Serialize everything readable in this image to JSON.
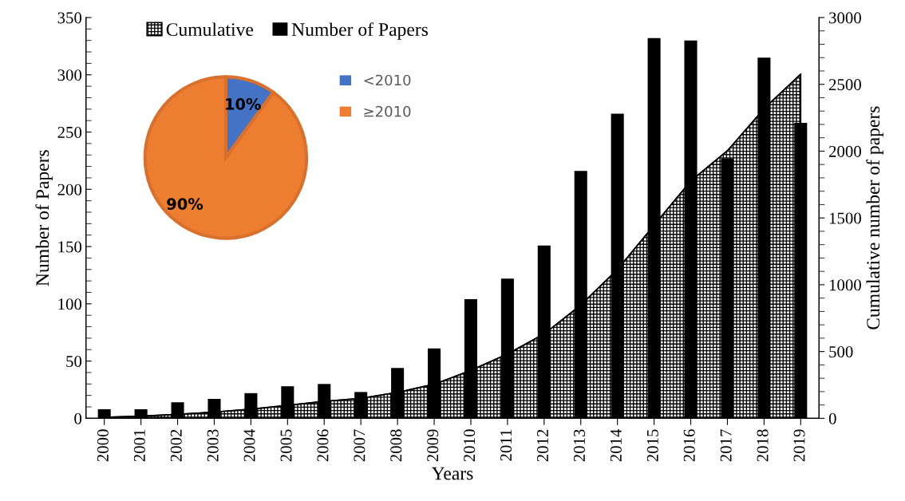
{
  "chart_data": [
    {
      "type": "bar",
      "xlabel": "Years",
      "ylabel": "Number of Papers",
      "y2label": "Cumulative number of papers",
      "categories": [
        "2000",
        "2001",
        "2002",
        "2003",
        "2004",
        "2005",
        "2006",
        "2007",
        "2008",
        "2009",
        "2010",
        "2011",
        "2012",
        "2013",
        "2014",
        "2015",
        "2016",
        "2017",
        "2018",
        "2019"
      ],
      "series": [
        {
          "name": "Cumulative",
          "type": "area",
          "axis": "y2",
          "color": "#000000",
          "values": [
            8,
            16,
            30,
            47,
            69,
            97,
            127,
            150,
            194,
            255,
            359,
            481,
            632,
            848,
            1114,
            1446,
            1776,
            2003,
            2318,
            2576
          ]
        },
        {
          "name": "Number of Papers",
          "type": "bar",
          "color": "#000000",
          "values": [
            8,
            8,
            14,
            17,
            22,
            28,
            30,
            23,
            44,
            61,
            104,
            122,
            151,
            216,
            266,
            332,
            330,
            227,
            315,
            258
          ]
        }
      ],
      "ylim": [
        0,
        350
      ],
      "yticks": [
        0,
        50,
        100,
        150,
        200,
        250,
        300,
        350
      ],
      "y2lim": [
        0,
        3000
      ],
      "y2ticks": [
        0,
        500,
        1000,
        1500,
        2000,
        2500,
        3000
      ],
      "legend": "top left"
    },
    {
      "type": "pie",
      "categories": [
        "<2010",
        "≥2010"
      ],
      "values": [
        10,
        90
      ],
      "colors": [
        "#4472c4",
        "#ed7d31"
      ],
      "value_labels": [
        "10%",
        "90%"
      ],
      "legend": "right"
    }
  ]
}
